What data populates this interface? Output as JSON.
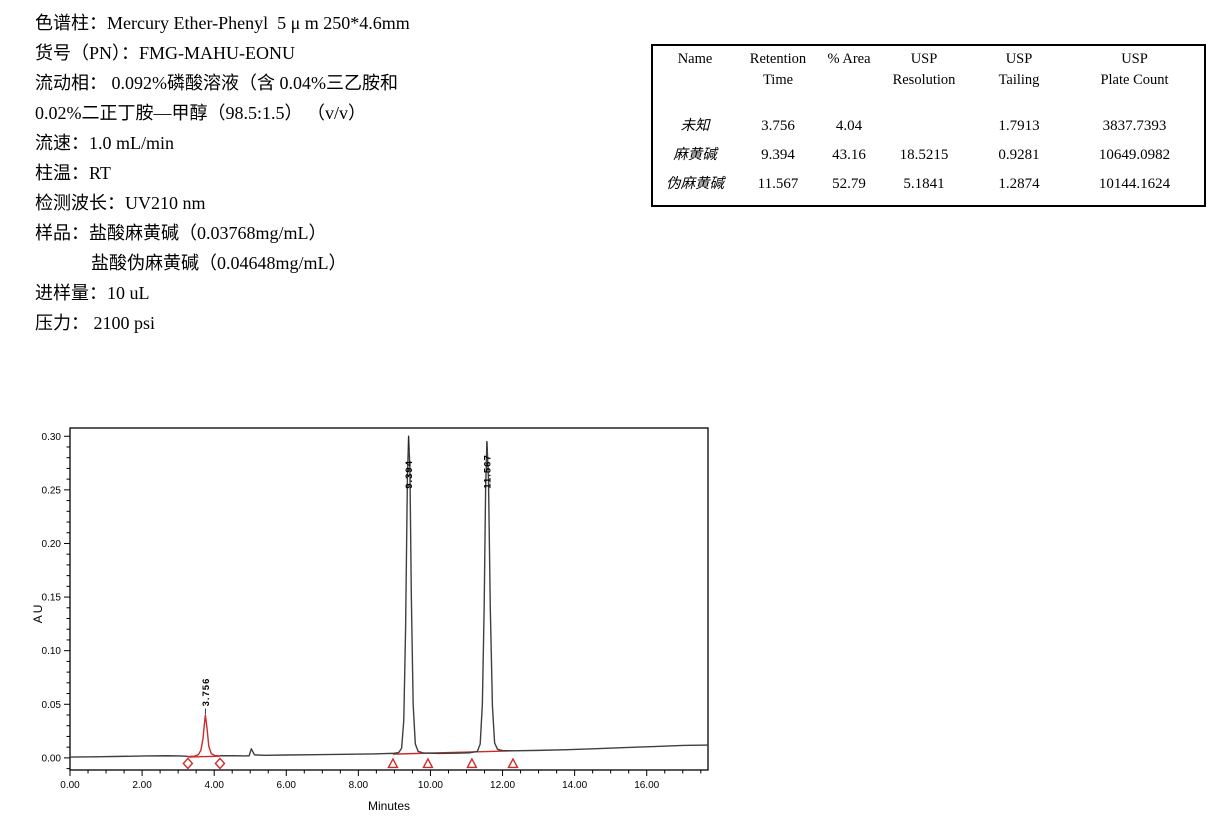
{
  "method_info": {
    "lines": [
      {
        "text": "色谱柱：Mercury Ether-Phenyl  5 μ m 250*4.6mm",
        "indent": false
      },
      {
        "text": "货号（PN）：FMG-MAHU-EONU",
        "indent": false
      },
      {
        "text": "流动相： 0.092%磷酸溶液（含 0.04%三乙胺和",
        "indent": false
      },
      {
        "text": "0.02%二正丁胺—甲醇（98.5:1.5） （v/v）",
        "indent": false
      },
      {
        "text": "流速：1.0 mL/min",
        "indent": false
      },
      {
        "text": "柱温：RT",
        "indent": false
      },
      {
        "text": "检测波长：UV210 nm",
        "indent": false
      },
      {
        "text": "样品：盐酸麻黄碱（0.03768mg/mL）",
        "indent": false
      },
      {
        "text": "盐酸伪麻黄碱（0.04648mg/mL）",
        "indent": true
      },
      {
        "text": "进样量：10 uL",
        "indent": false
      },
      {
        "text": "压力： 2100 psi",
        "indent": false
      }
    ]
  },
  "results_table": {
    "columns": [
      {
        "line1": "Name",
        "line2": ""
      },
      {
        "line1": "Retention",
        "line2": "Time"
      },
      {
        "line1": "% Area",
        "line2": ""
      },
      {
        "line1": "USP Resolution",
        "line2": ""
      },
      {
        "line1": "USP",
        "line2": "Tailing"
      },
      {
        "line1": "USP",
        "line2": "Plate Count"
      }
    ],
    "rows": [
      {
        "name": "未知",
        "retention_time": "3.756",
        "pct_area": "4.04",
        "usp_resolution": "",
        "usp_tailing": "1.7913",
        "usp_plate_count": "3837.7393"
      },
      {
        "name": "麻黄碱",
        "retention_time": "9.394",
        "pct_area": "43.16",
        "usp_resolution": "18.5215",
        "usp_tailing": "0.9281",
        "usp_plate_count": "10649.0982"
      },
      {
        "name": "伪麻黄碱",
        "retention_time": "11.567",
        "pct_area": "52.79",
        "usp_resolution": "5.1841",
        "usp_tailing": "1.2874",
        "usp_plate_count": "10144.1624"
      }
    ]
  },
  "chart_data": {
    "type": "line",
    "title": "",
    "xlabel": "Minutes",
    "ylabel": "AU",
    "xlim": [
      0,
      17.7
    ],
    "ylim": [
      -0.0113,
      0.3077
    ],
    "grid": false,
    "x_major_ticks": [
      {
        "value": 0,
        "label": "0.00"
      },
      {
        "value": 2,
        "label": "2.00"
      },
      {
        "value": 4,
        "label": "4.00"
      },
      {
        "value": 6,
        "label": "6.00"
      },
      {
        "value": 8,
        "label": "8.00"
      },
      {
        "value": 10,
        "label": "10.00"
      },
      {
        "value": 12,
        "label": "12.00"
      },
      {
        "value": 14,
        "label": "14.00"
      },
      {
        "value": 16,
        "label": "16.00"
      }
    ],
    "x_minor_step": 0.5,
    "y_major_ticks": [
      {
        "value": 0.0,
        "label": "0.00"
      },
      {
        "value": 0.05,
        "label": "0.05"
      },
      {
        "value": 0.1,
        "label": "0.10"
      },
      {
        "value": 0.15,
        "label": "0.15"
      },
      {
        "value": 0.2,
        "label": "0.20"
      },
      {
        "value": 0.25,
        "label": "0.25"
      },
      {
        "value": 0.3,
        "label": "0.30"
      }
    ],
    "y_minor_step": 0.01,
    "colors": {
      "trace": "#3f3f3f",
      "integration": "#cc2b2b",
      "axis": "#000000"
    },
    "peaks": [
      {
        "name": "未知",
        "retention_time": 3.756,
        "height_au": 0.04,
        "label": "3.756",
        "trace": "red"
      },
      {
        "name": "麻黄碱",
        "retention_time": 9.394,
        "height_au": 0.3,
        "label": "9.394",
        "trace": "black"
      },
      {
        "name": "伪麻黄碱",
        "retention_time": 11.567,
        "height_au": 0.295,
        "label": "11.567",
        "trace": "black"
      }
    ],
    "baseline_markers": {
      "diamonds_min": [
        3.27,
        4.16
      ],
      "triangles_min": [
        8.96,
        9.93,
        11.15,
        12.29
      ],
      "marker_au": -0.0052
    },
    "red_baseline_segments": [
      [
        [
          3.27,
          0.0008
        ],
        [
          4.16,
          0.0016
        ]
      ],
      [
        [
          8.96,
          0.0035
        ],
        [
          12.29,
          0.0066
        ]
      ]
    ],
    "red_trace": [
      [
        3.27,
        0.0012
      ],
      [
        3.45,
        0.0016
      ],
      [
        3.56,
        0.003
      ],
      [
        3.63,
        0.007
      ],
      [
        3.69,
        0.018
      ],
      [
        3.72,
        0.029
      ],
      [
        3.756,
        0.04
      ],
      [
        3.8,
        0.028
      ],
      [
        3.85,
        0.011
      ],
      [
        3.92,
        0.004
      ],
      [
        4.02,
        0.0022
      ],
      [
        4.16,
        0.0018
      ]
    ],
    "black_trace_segments": [
      [
        [
          0,
          0.0008
        ],
        [
          0.7,
          0.001
        ],
        [
          1.4,
          0.0014
        ],
        [
          2.1,
          0.0018
        ],
        [
          2.7,
          0.002
        ],
        [
          3.05,
          0.0018
        ],
        [
          3.27,
          0.0015
        ]
      ],
      [
        [
          4.16,
          0.002
        ],
        [
          4.55,
          0.002
        ],
        [
          4.85,
          0.0018
        ],
        [
          4.97,
          0.002
        ],
        [
          5.03,
          0.0085
        ],
        [
          5.12,
          0.0028
        ],
        [
          5.4,
          0.0024
        ],
        [
          6.0,
          0.0027
        ],
        [
          6.8,
          0.003
        ],
        [
          7.6,
          0.0033
        ],
        [
          8.4,
          0.0037
        ],
        [
          8.96,
          0.0042
        ],
        [
          9.12,
          0.005
        ],
        [
          9.2,
          0.009
        ],
        [
          9.26,
          0.035
        ],
        [
          9.31,
          0.12
        ],
        [
          9.36,
          0.26
        ],
        [
          9.394,
          0.3
        ],
        [
          9.43,
          0.27
        ],
        [
          9.47,
          0.15
        ],
        [
          9.52,
          0.05
        ],
        [
          9.58,
          0.013
        ],
        [
          9.66,
          0.006
        ],
        [
          9.8,
          0.0046
        ],
        [
          10.2,
          0.0042
        ],
        [
          10.7,
          0.0044
        ],
        [
          11.1,
          0.0048
        ],
        [
          11.3,
          0.006
        ],
        [
          11.38,
          0.013
        ],
        [
          11.44,
          0.05
        ],
        [
          11.49,
          0.14
        ],
        [
          11.53,
          0.25
        ],
        [
          11.567,
          0.295
        ],
        [
          11.61,
          0.26
        ],
        [
          11.66,
          0.14
        ],
        [
          11.72,
          0.048
        ],
        [
          11.78,
          0.014
        ],
        [
          11.86,
          0.008
        ],
        [
          12.0,
          0.0068
        ],
        [
          12.29,
          0.0066
        ],
        [
          13.0,
          0.007
        ],
        [
          13.8,
          0.0076
        ],
        [
          14.6,
          0.0086
        ],
        [
          15.4,
          0.0096
        ],
        [
          16.2,
          0.0106
        ],
        [
          17.0,
          0.0116
        ],
        [
          17.7,
          0.012
        ]
      ]
    ]
  }
}
